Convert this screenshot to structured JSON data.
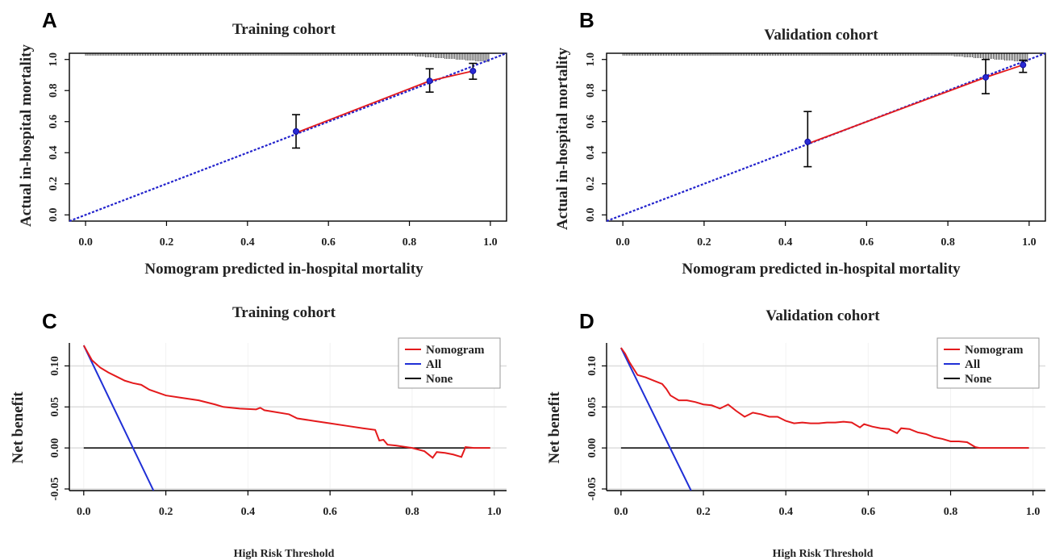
{
  "panels": [
    {
      "letter": "A",
      "title": "Training cohort",
      "xlabel": "Nomogram predicted  in-hospital mortality",
      "ylabel": "Actual in-hospital mortality",
      "xticks": [
        "0.0",
        "0.2",
        "0.4",
        "0.6",
        "0.8",
        "1.0"
      ],
      "yticks": [
        "0.0",
        "0.2",
        "0.4",
        "0.6",
        "0.8",
        "1.0"
      ]
    },
    {
      "letter": "B",
      "title": "Validation  cohort",
      "xlabel": "Nomogram predicted  in-hospital mortality",
      "ylabel": "Actual in-hospital mortality",
      "xticks": [
        "0.0",
        "0.2",
        "0.4",
        "0.6",
        "0.8",
        "1.0"
      ],
      "yticks": [
        "0.0",
        "0.2",
        "0.4",
        "0.6",
        "0.8",
        "1.0"
      ]
    },
    {
      "letter": "C",
      "title": "Training cohort",
      "xlabel": "High Risk Threshold",
      "ylabel": "Net benefit",
      "xticks": [
        "0.0",
        "0.2",
        "0.4",
        "0.6",
        "0.8",
        "1.0"
      ],
      "yticks": [
        "-0.05",
        "0.00",
        "0.05",
        "0.10"
      ],
      "legend": [
        "Nomogram",
        "All",
        "None"
      ]
    },
    {
      "letter": "D",
      "title": "Validation  cohort",
      "xlabel": "High Risk Threshold",
      "ylabel": "Net benefit",
      "xticks": [
        "0.0",
        "0.2",
        "0.4",
        "0.6",
        "0.8",
        "1.0"
      ],
      "yticks": [
        "-0.05",
        "0.00",
        "0.05",
        "0.10"
      ],
      "legend": [
        "Nomogram",
        "All",
        "None"
      ]
    }
  ],
  "chart_data": [
    {
      "type": "line",
      "title": "Training cohort",
      "xlabel": "Nomogram predicted  in-hospital mortality",
      "ylabel": "Actual in-hospital mortality",
      "xlim": [
        -0.04,
        1.04
      ],
      "ylim": [
        -0.04,
        1.04
      ],
      "grid": false,
      "series": [
        {
          "kind": "calibration",
          "color": "#e41a1c",
          "x": [
            0.52,
            0.85,
            0.957
          ],
          "y": [
            0.528,
            0.862,
            0.926
          ]
        },
        {
          "kind": "ideal",
          "color": "#2222cc",
          "style": "dotted",
          "x": [
            -0.04,
            1.04
          ],
          "y": [
            -0.04,
            1.04
          ]
        }
      ],
      "points": [
        {
          "x": 0.52,
          "y": 0.537,
          "lo": 0.43,
          "hi": 0.645
        },
        {
          "x": 0.85,
          "y": 0.862,
          "lo": 0.79,
          "hi": 0.94
        },
        {
          "x": 0.957,
          "y": 0.926,
          "lo": 0.873,
          "hi": 0.975
        }
      ],
      "rug": true
    },
    {
      "type": "line",
      "title": "Validation  cohort",
      "xlabel": "Nomogram predicted  in-hospital mortality",
      "ylabel": "Actual in-hospital mortality",
      "xlim": [
        -0.04,
        1.04
      ],
      "ylim": [
        -0.04,
        1.04
      ],
      "grid": false,
      "series": [
        {
          "kind": "calibration",
          "color": "#e41a1c",
          "x": [
            0.455,
            0.893,
            0.985
          ],
          "y": [
            0.458,
            0.885,
            0.965
          ]
        },
        {
          "kind": "ideal",
          "color": "#2222cc",
          "style": "dotted",
          "x": [
            -0.04,
            1.04
          ],
          "y": [
            -0.04,
            1.04
          ]
        }
      ],
      "points": [
        {
          "x": 0.455,
          "y": 0.47,
          "lo": 0.31,
          "hi": 0.665
        },
        {
          "x": 0.893,
          "y": 0.885,
          "lo": 0.78,
          "hi": 1.0
        },
        {
          "x": 0.985,
          "y": 0.965,
          "lo": 0.917,
          "hi": 0.995
        }
      ],
      "rug": true
    },
    {
      "type": "line",
      "title": "Training cohort",
      "xlabel": "High Risk Threshold",
      "ylabel": "Net benefit",
      "xlim": [
        -0.035,
        1.03
      ],
      "ylim": [
        -0.052,
        0.128
      ],
      "grid": true,
      "legend_position": "top-right",
      "series": [
        {
          "name": "Nomogram",
          "color": "#e41a1c",
          "x": [
            0.0,
            0.02,
            0.04,
            0.06,
            0.08,
            0.1,
            0.12,
            0.14,
            0.16,
            0.2,
            0.24,
            0.28,
            0.32,
            0.34,
            0.38,
            0.42,
            0.43,
            0.44,
            0.5,
            0.52,
            0.56,
            0.6,
            0.64,
            0.68,
            0.71,
            0.72,
            0.73,
            0.74,
            0.76,
            0.8,
            0.83,
            0.85,
            0.86,
            0.88,
            0.9,
            0.92,
            0.93,
            0.95,
            0.99
          ],
          "y": [
            0.125,
            0.107,
            0.098,
            0.092,
            0.087,
            0.082,
            0.079,
            0.077,
            0.071,
            0.064,
            0.061,
            0.058,
            0.053,
            0.05,
            0.048,
            0.047,
            0.049,
            0.046,
            0.041,
            0.036,
            0.033,
            0.03,
            0.027,
            0.024,
            0.022,
            0.009,
            0.01,
            0.004,
            0.003,
            0.0,
            -0.004,
            -0.012,
            -0.005,
            -0.006,
            -0.008,
            -0.011,
            0.001,
            0.0,
            0.0
          ]
        },
        {
          "name": "All",
          "color": "#1f2fd6",
          "x": [
            0.0,
            0.17
          ],
          "y": [
            0.125,
            -0.052
          ]
        },
        {
          "name": "None",
          "color": "#000000",
          "x": [
            0.0,
            0.99
          ],
          "y": [
            0.0,
            0.0
          ]
        }
      ]
    },
    {
      "type": "line",
      "title": "Validation  cohort",
      "xlabel": "High Risk Threshold",
      "ylabel": "Net benefit",
      "xlim": [
        -0.035,
        1.03
      ],
      "ylim": [
        -0.052,
        0.128
      ],
      "grid": true,
      "legend_position": "top-right",
      "series": [
        {
          "name": "Nomogram",
          "color": "#e41a1c",
          "x": [
            0.0,
            0.01,
            0.02,
            0.03,
            0.04,
            0.06,
            0.08,
            0.1,
            0.11,
            0.12,
            0.14,
            0.16,
            0.18,
            0.2,
            0.22,
            0.24,
            0.26,
            0.28,
            0.3,
            0.32,
            0.34,
            0.36,
            0.38,
            0.4,
            0.42,
            0.44,
            0.46,
            0.48,
            0.5,
            0.52,
            0.54,
            0.56,
            0.58,
            0.59,
            0.61,
            0.63,
            0.65,
            0.67,
            0.68,
            0.7,
            0.72,
            0.74,
            0.76,
            0.78,
            0.8,
            0.82,
            0.84,
            0.86,
            0.87,
            0.9,
            0.99
          ],
          "y": [
            0.122,
            0.115,
            0.105,
            0.097,
            0.089,
            0.086,
            0.082,
            0.078,
            0.072,
            0.064,
            0.058,
            0.058,
            0.056,
            0.053,
            0.052,
            0.048,
            0.053,
            0.045,
            0.038,
            0.043,
            0.041,
            0.038,
            0.038,
            0.033,
            0.03,
            0.031,
            0.03,
            0.03,
            0.031,
            0.031,
            0.032,
            0.031,
            0.025,
            0.029,
            0.026,
            0.024,
            0.023,
            0.018,
            0.024,
            0.023,
            0.019,
            0.017,
            0.013,
            0.011,
            0.008,
            0.008,
            0.007,
            0.001,
            0.0,
            0.0,
            0.0
          ]
        },
        {
          "name": "All",
          "color": "#1f2fd6",
          "x": [
            0.0,
            0.17
          ],
          "y": [
            0.122,
            -0.052
          ]
        },
        {
          "name": "None",
          "color": "#000000",
          "x": [
            0.0,
            0.99
          ],
          "y": [
            0.0,
            0.0
          ]
        }
      ]
    }
  ]
}
